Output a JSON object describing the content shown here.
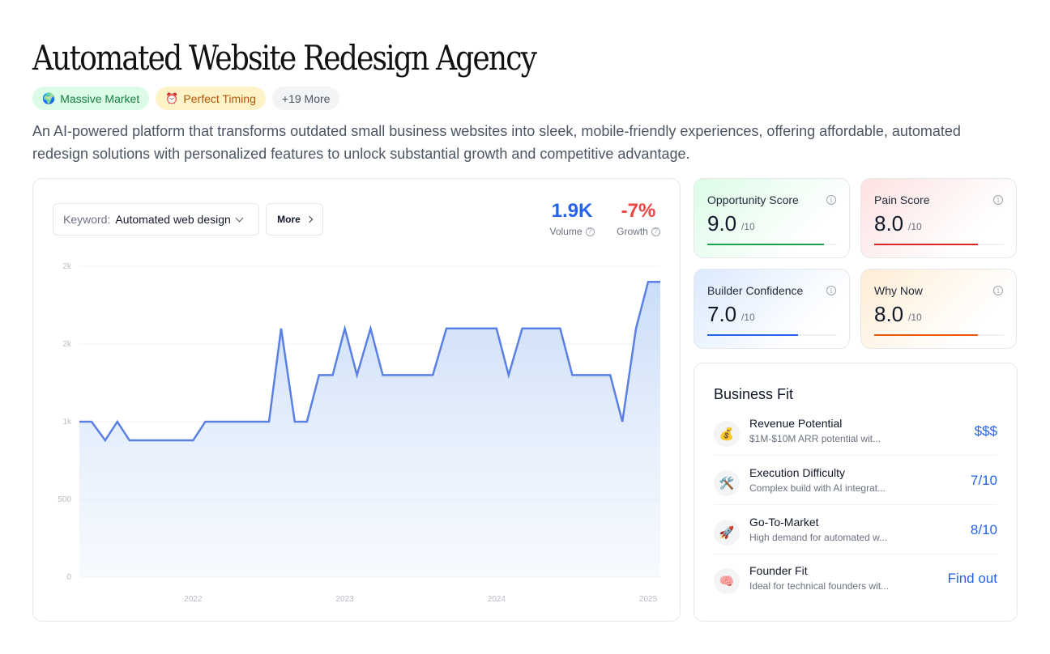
{
  "page": {
    "title": "Automated Website Redesign Agency",
    "tags": [
      {
        "emoji": "🌍",
        "label": "Massive Market"
      },
      {
        "emoji": "⏰",
        "label": "Perfect Timing"
      },
      {
        "label": "+19 More"
      }
    ],
    "description": "An AI-powered platform that transforms outdated small business websites into sleek, mobile-friendly experiences, offering affordable, automated redesign solutions with personalized features to unlock substantial growth and competitive advantage."
  },
  "trend": {
    "keyword_label": "Keyword:",
    "keyword_value": "Automated web design",
    "more_label": "More",
    "volume": {
      "value": "1.9K",
      "label": "Volume",
      "color": "#2563eb"
    },
    "growth": {
      "value": "-7%",
      "label": "Growth",
      "color": "#ef4444"
    }
  },
  "chart_data": {
    "type": "area",
    "title": "",
    "xlabel": "",
    "ylabel": "",
    "y_tick_labels": [
      "0",
      "500",
      "1k",
      "2k",
      "2k"
    ],
    "y_tick_values": [
      0,
      500,
      1000,
      1500,
      2000
    ],
    "x_tick_labels": [
      "2022",
      "2023",
      "2024",
      "2025"
    ],
    "x_tick_values": [
      2022,
      2023,
      2024,
      2025
    ],
    "xlim": [
      2021.25,
      2025.08
    ],
    "ylim": [
      0,
      2000
    ],
    "color": "#5b80e4",
    "grid": true,
    "x": [
      2021.25,
      2021.33,
      2021.42,
      2021.5,
      2021.58,
      2021.67,
      2021.75,
      2021.83,
      2021.92,
      2022.0,
      2022.08,
      2022.17,
      2022.25,
      2022.33,
      2022.42,
      2022.5,
      2022.58,
      2022.67,
      2022.75,
      2022.83,
      2022.92,
      2023.0,
      2023.08,
      2023.17,
      2023.25,
      2023.33,
      2023.42,
      2023.5,
      2023.58,
      2023.67,
      2023.75,
      2023.83,
      2023.92,
      2024.0,
      2024.08,
      2024.17,
      2024.25,
      2024.33,
      2024.42,
      2024.5,
      2024.58,
      2024.67,
      2024.75,
      2024.83,
      2024.92,
      2025.0,
      2025.08
    ],
    "values": [
      1000,
      1000,
      880,
      1000,
      880,
      880,
      880,
      880,
      880,
      880,
      1000,
      1000,
      1000,
      1000,
      1000,
      1000,
      1600,
      1000,
      1000,
      1300,
      1300,
      1600,
      1300,
      1600,
      1300,
      1300,
      1300,
      1300,
      1300,
      1600,
      1600,
      1600,
      1600,
      1600,
      1300,
      1600,
      1600,
      1600,
      1600,
      1300,
      1300,
      1300,
      1300,
      1000,
      1600,
      1900,
      1900
    ]
  },
  "scores": {
    "opportunity": {
      "title": "Opportunity Score",
      "value": "9.0",
      "max": "/10",
      "fraction": 0.9,
      "color": "#16a34a"
    },
    "pain": {
      "title": "Pain Score",
      "value": "8.0",
      "max": "/10",
      "fraction": 0.8,
      "color": "#dc2626"
    },
    "builder": {
      "title": "Builder Confidence",
      "value": "7.0",
      "max": "/10",
      "fraction": 0.7,
      "color": "#2563eb"
    },
    "whynow": {
      "title": "Why Now",
      "value": "8.0",
      "max": "/10",
      "fraction": 0.8,
      "color": "#ea580c"
    }
  },
  "business_fit": {
    "title": "Business Fit",
    "items": [
      {
        "icon": "money-bag-icon",
        "emoji": "💰",
        "name": "Revenue Potential",
        "desc": "$1M-$10M ARR potential wit...",
        "value": "$$$"
      },
      {
        "icon": "tools-icon",
        "emoji": "🛠️",
        "name": "Execution Difficulty",
        "desc": "Complex build with AI integrat...",
        "value": "7/10"
      },
      {
        "icon": "rocket-icon",
        "emoji": "🚀",
        "name": "Go-To-Market",
        "desc": "High demand for automated w...",
        "value": "8/10"
      },
      {
        "icon": "brain-icon",
        "emoji": "🧠",
        "name": "Founder Fit",
        "desc": "Ideal for technical founders wit...",
        "value": "Find out"
      }
    ]
  }
}
